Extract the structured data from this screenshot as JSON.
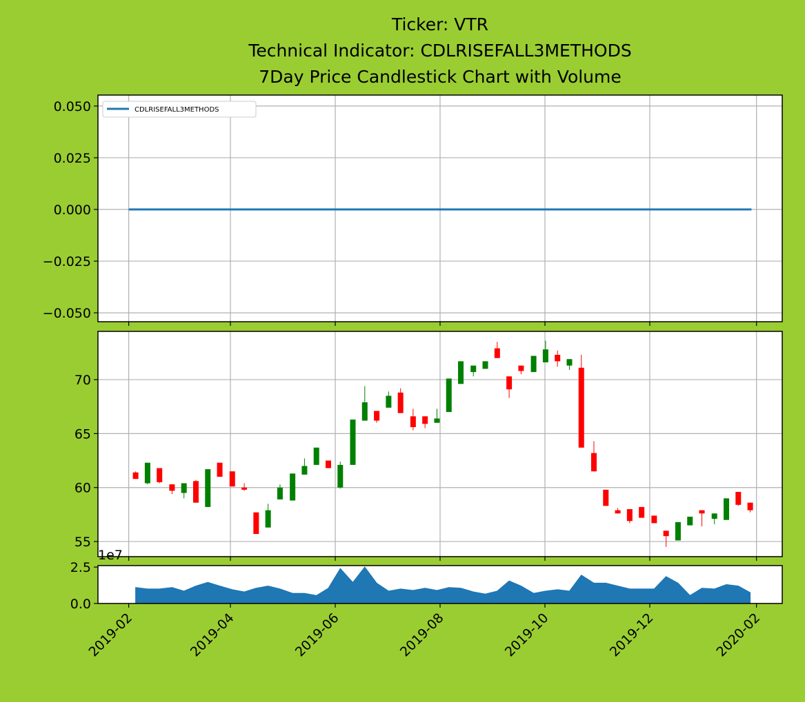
{
  "chart_data": [
    {
      "type": "line",
      "title": [
        "Ticker: VTR",
        "Technical Indicator: CDLRISEFALL3METHODS",
        "7Day Price Candlestick Chart with Volume"
      ],
      "series": [
        {
          "name": "CDLRISEFALL3METHODS",
          "color": "#1f77b4",
          "x": [
            2019.085,
            2020.077
          ],
          "values": [
            0,
            0
          ]
        }
      ],
      "ylim": [
        -0.0543,
        0.0553
      ],
      "yticks": [
        {
          "value": 0.05,
          "label": "0.050"
        },
        {
          "value": 0.025,
          "label": "0.025"
        },
        {
          "value": 0,
          "label": "0.000"
        },
        {
          "value": -0.025,
          "label": "−0.025"
        },
        {
          "value": -0.05,
          "label": "−0.050"
        }
      ],
      "grid": true,
      "legend": "upper left"
    },
    {
      "type": "candlestick",
      "x": [
        2019.096,
        2019.115,
        2019.134,
        2019.154,
        2019.173,
        2019.192,
        2019.211,
        2019.23,
        2019.25,
        2019.269,
        2019.288,
        2019.307,
        2019.326,
        2019.346,
        2019.365,
        2019.384,
        2019.403,
        2019.422,
        2019.442,
        2019.461,
        2019.48,
        2019.499,
        2019.518,
        2019.538,
        2019.557,
        2019.576,
        2019.595,
        2019.614,
        2019.634,
        2019.653,
        2019.672,
        2019.691,
        2019.71,
        2019.73,
        2019.749,
        2019.768,
        2019.787,
        2019.806,
        2019.826,
        2019.845,
        2019.864,
        2019.883,
        2019.902,
        2019.922,
        2019.941,
        2019.96,
        2019.979,
        2019.998,
        2020.018,
        2020.037,
        2020.056,
        2020.075
      ],
      "open": [
        61.4,
        60.4,
        61.8,
        60.3,
        59.5,
        60.6,
        58.2,
        62.3,
        61.5,
        60.0,
        57.7,
        56.3,
        58.9,
        58.8,
        61.2,
        62.1,
        62.5,
        60.0,
        62.1,
        66.2,
        67.1,
        67.4,
        68.8,
        66.6,
        66.6,
        66.0,
        67.0,
        69.6,
        70.7,
        71.0,
        72.9,
        70.3,
        71.3,
        70.7,
        71.6,
        72.3,
        71.3,
        71.1,
        63.2,
        59.8,
        57.9,
        58.0,
        58.2,
        57.4,
        56.0,
        55.1,
        56.5,
        57.9,
        57.1,
        57.0,
        59.6,
        58.6
      ],
      "high": [
        61.5,
        62.3,
        61.8,
        60.3,
        60.4,
        60.7,
        61.7,
        62.3,
        61.5,
        60.4,
        57.7,
        58.5,
        60.3,
        61.3,
        62.7,
        63.7,
        62.5,
        62.4,
        66.3,
        69.4,
        67.1,
        68.9,
        69.2,
        67.3,
        66.6,
        67.3,
        70.1,
        71.7,
        71.3,
        71.7,
        73.5,
        70.3,
        71.3,
        72.2,
        73.6,
        72.7,
        71.9,
        72.3,
        64.3,
        59.8,
        58.1,
        58.0,
        58.2,
        57.4,
        56.0,
        56.8,
        57.3,
        57.9,
        57.6,
        59.0,
        59.6,
        58.6
      ],
      "low": [
        60.8,
        60.3,
        60.4,
        59.4,
        59.0,
        58.6,
        58.2,
        61.0,
        60.1,
        59.7,
        55.7,
        56.3,
        58.9,
        58.8,
        61.2,
        62.1,
        61.8,
        59.9,
        62.1,
        66.2,
        66.0,
        67.4,
        66.9,
        65.3,
        65.5,
        66.0,
        67.0,
        69.6,
        70.3,
        71.0,
        72.0,
        68.3,
        70.5,
        70.7,
        71.6,
        71.2,
        70.9,
        63.7,
        61.5,
        58.3,
        57.6,
        56.7,
        57.2,
        56.7,
        54.5,
        55.1,
        56.5,
        56.4,
        56.6,
        57.0,
        58.3,
        57.7
      ],
      "close": [
        60.8,
        62.3,
        60.5,
        59.7,
        60.4,
        58.6,
        61.7,
        61.0,
        60.1,
        59.8,
        55.7,
        57.9,
        60.0,
        61.3,
        62.0,
        63.7,
        61.8,
        62.1,
        66.3,
        67.9,
        66.2,
        68.5,
        66.9,
        65.6,
        65.9,
        66.4,
        70.1,
        71.7,
        71.3,
        71.7,
        72.0,
        69.1,
        70.8,
        72.2,
        72.8,
        71.7,
        71.9,
        63.7,
        61.5,
        58.3,
        57.6,
        56.9,
        57.2,
        56.7,
        55.5,
        56.8,
        57.3,
        57.6,
        57.6,
        59.0,
        58.4,
        57.9
      ],
      "up_color": "#008000",
      "down_color": "#ff0000",
      "ylim": [
        53.6,
        74.47
      ],
      "yticks": [
        55,
        60,
        65,
        70
      ],
      "grid": true
    },
    {
      "type": "area",
      "color": "#1f77b4",
      "y_offset_label": "1e7",
      "values": [
        1.1,
        1.0,
        1.0,
        1.1,
        0.85,
        1.2,
        1.45,
        1.2,
        0.95,
        0.8,
        1.05,
        1.2,
        1.0,
        0.7,
        0.7,
        0.55,
        1.05,
        2.4,
        1.45,
        2.5,
        1.4,
        0.85,
        1.0,
        0.9,
        1.05,
        0.9,
        1.1,
        1.05,
        0.8,
        0.65,
        0.85,
        1.55,
        1.2,
        0.7,
        0.85,
        0.95,
        0.85,
        1.95,
        1.4,
        1.4,
        1.2,
        1.0,
        1.0,
        1.0,
        1.85,
        1.4,
        0.55,
        1.05,
        1.0,
        1.3,
        1.2,
        0.75
      ],
      "ylim": [
        0,
        2.6
      ],
      "yticks": [
        {
          "value": 0,
          "label": "0.0"
        },
        2.5
      ],
      "grid": false,
      "xlim": [
        2019.036,
        2020.126
      ],
      "xticks": [
        {
          "value": 2019.085,
          "label": "2019-02"
        },
        {
          "value": 2019.247,
          "label": "2019-04"
        },
        {
          "value": 2019.414,
          "label": "2019-06"
        },
        {
          "value": 2019.581,
          "label": "2019-08"
        },
        {
          "value": 2019.748,
          "label": "2019-10"
        },
        {
          "value": 2019.915,
          "label": "2019-12"
        },
        {
          "value": 2020.085,
          "label": "2020-02"
        }
      ]
    }
  ]
}
